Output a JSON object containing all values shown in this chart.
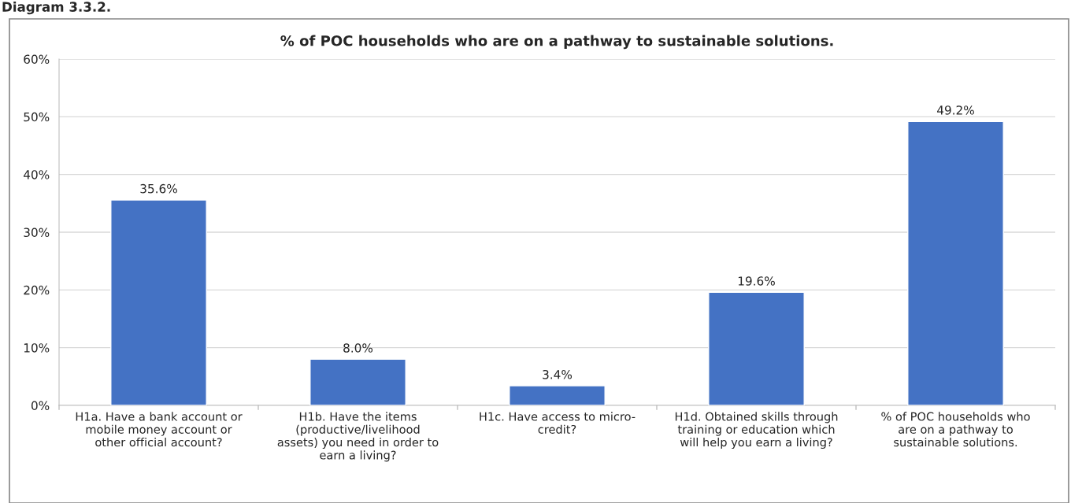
{
  "chart_data": {
    "type": "bar",
    "title": "% of POC households who are on a pathway to sustainable solutions.",
    "annotations": [
      "Diagram 3.3.2."
    ],
    "categories": [
      "H1a. Have a bank account or\nmobile money account or\nother official account?",
      "H1b. Have the items\n(productive/livelihood\nassets) you need in order to\nearn a living?",
      "H1c. Have access to micro-\ncredit?",
      "H1d. Obtained skills through\ntraining or education which\nwill help you earn a living?",
      "% of POC households who\nare on a pathway to\nsustainable solutions."
    ],
    "values": [
      35.6,
      8.0,
      3.4,
      19.6,
      49.2
    ],
    "value_labels": [
      "35.6%",
      "8.0%",
      "3.4%",
      "19.6%",
      "49.2%"
    ],
    "color": "#4472c4",
    "ylim": [
      0,
      60
    ],
    "yticks": [
      {
        "value": 0,
        "label": "0%"
      },
      {
        "value": 10,
        "label": "10%"
      },
      {
        "value": 20,
        "label": "20%"
      },
      {
        "value": 30,
        "label": "30%"
      },
      {
        "value": 40,
        "label": "40%"
      },
      {
        "value": 50,
        "label": "50%"
      },
      {
        "value": 60,
        "label": "60%"
      }
    ],
    "grid": "y",
    "legend": false
  }
}
